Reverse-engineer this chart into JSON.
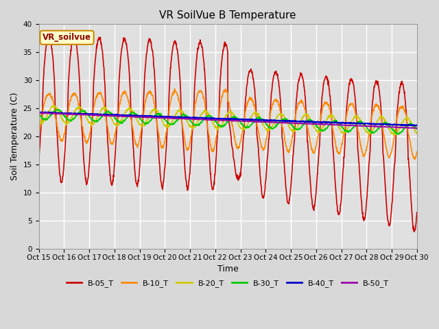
{
  "title": "VR SoilVue B Temperature",
  "xlabel": "Time",
  "ylabel": "Soil Temperature (C)",
  "ylim": [
    0,
    40
  ],
  "yticks": [
    0,
    5,
    10,
    15,
    20,
    25,
    30,
    35,
    40
  ],
  "x_labels": [
    "Oct 15",
    "Oct 16",
    "Oct 17",
    "Oct 18",
    "Oct 19",
    "Oct 20",
    "Oct 21",
    "Oct 22",
    "Oct 23",
    "Oct 24",
    "Oct 25",
    "Oct 26",
    "Oct 27",
    "Oct 28",
    "Oct 29",
    "Oct 30"
  ],
  "legend_label": "VR_soilvue",
  "series_labels": [
    "B-05_T",
    "B-10_T",
    "B-20_T",
    "B-30_T",
    "B-40_T",
    "B-50_T"
  ],
  "series_colors": [
    "#cc0000",
    "#ff8800",
    "#cccc00",
    "#00cc00",
    "#0000cc",
    "#9900aa"
  ],
  "background_color": "#d8d8d8",
  "plot_bg_color": "#e0e0e0",
  "grid_color": "#ffffff",
  "n_points": 1440
}
